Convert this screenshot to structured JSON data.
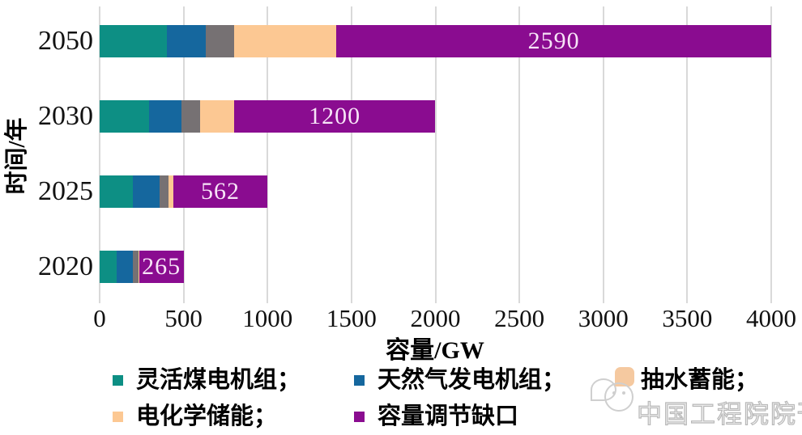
{
  "chart_data": {
    "type": "bar",
    "orientation": "horizontal",
    "title": "",
    "xlabel": "容量/GW",
    "ylabel": "时间/年",
    "xlim": [
      0,
      4000
    ],
    "xticks": [
      0,
      500,
      1000,
      1500,
      2000,
      2500,
      3000,
      3500,
      4000
    ],
    "grid": true,
    "legend_position": "bottom",
    "categories": [
      "2050",
      "2030",
      "2025",
      "2020"
    ],
    "series": [
      {
        "key": "flexible-coal",
        "name": "灵活煤电机组",
        "color": "#0D8F84",
        "values": [
          400,
          295,
          200,
          100
        ]
      },
      {
        "key": "natural-gas",
        "name": "天然气发电机组",
        "color": "#15679E",
        "values": [
          230,
          190,
          158,
          100
        ]
      },
      {
        "key": "pumped-storage",
        "name": "抽水蓄能",
        "color": "#767173",
        "values": [
          170,
          115,
          50,
          30
        ]
      },
      {
        "key": "electrochemical-storage",
        "name": "电化学储能",
        "color": "#FCC893",
        "values": [
          610,
          200,
          30,
          5
        ]
      },
      {
        "key": "capacity-gap",
        "name": "容量调节缺口",
        "color": "#8A0C90",
        "values": [
          2590,
          1200,
          562,
          265
        ]
      }
    ],
    "bar_labels": [
      "2590",
      "1200",
      "562",
      "265"
    ],
    "bar_label_color": "#F7E4F7",
    "gridline_color": "#D9D9D9"
  },
  "axes": {
    "x_title": "容量/GW",
    "y_title": "时间/年"
  },
  "legend": {
    "items": [
      {
        "key": "flexible-coal",
        "label": "灵活煤电机组；",
        "color": "#0D8F84"
      },
      {
        "key": "natural-gas",
        "label": "天然气发电机组；",
        "color": "#15679E"
      },
      {
        "key": "pumped-storage",
        "label": "抽水蓄能；",
        "color": "#767173"
      },
      {
        "key": "electrochemical-storage",
        "label": "电化学储能；",
        "color": "#FCC893"
      },
      {
        "key": "capacity-gap",
        "label": "容量调节缺口",
        "color": "#8A0C90"
      }
    ]
  },
  "watermark": {
    "text": "中国工程院院刊"
  }
}
